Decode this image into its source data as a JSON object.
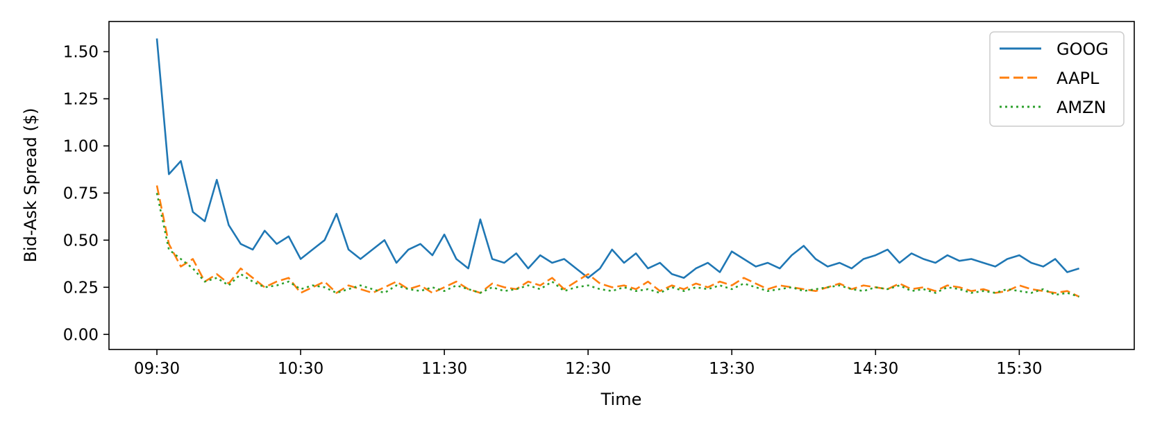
{
  "chart_data": {
    "type": "line",
    "title": "",
    "xlabel": "Time",
    "ylabel": "Bid-Ask Spread ($)",
    "x_range": [
      "09:10",
      "16:18"
    ],
    "ylim": [
      -0.08,
      1.66
    ],
    "x_ticks": [
      "09:30",
      "10:30",
      "11:30",
      "12:30",
      "13:30",
      "14:30",
      "15:30"
    ],
    "y_ticks": [
      "0.00",
      "0.25",
      "0.50",
      "0.75",
      "1.00",
      "1.25",
      "1.50"
    ],
    "legend_position": "top-right",
    "x": [
      "09:30",
      "09:35",
      "09:40",
      "09:45",
      "09:50",
      "09:55",
      "10:00",
      "10:05",
      "10:10",
      "10:15",
      "10:20",
      "10:25",
      "10:30",
      "10:35",
      "10:40",
      "10:45",
      "10:50",
      "10:55",
      "11:00",
      "11:05",
      "11:10",
      "11:15",
      "11:20",
      "11:25",
      "11:30",
      "11:35",
      "11:40",
      "11:45",
      "11:50",
      "11:55",
      "12:00",
      "12:05",
      "12:10",
      "12:15",
      "12:20",
      "12:25",
      "12:30",
      "12:35",
      "12:40",
      "12:45",
      "12:50",
      "12:55",
      "13:00",
      "13:05",
      "13:10",
      "13:15",
      "13:20",
      "13:25",
      "13:30",
      "13:35",
      "13:40",
      "13:45",
      "13:50",
      "13:55",
      "14:00",
      "14:05",
      "14:10",
      "14:15",
      "14:20",
      "14:25",
      "14:30",
      "14:35",
      "14:40",
      "14:45",
      "14:50",
      "14:55",
      "15:00",
      "15:05",
      "15:10",
      "15:15",
      "15:20",
      "15:25",
      "15:30",
      "15:35",
      "15:40",
      "15:45",
      "15:50",
      "15:55"
    ],
    "series": [
      {
        "name": "GOOG",
        "color": "#1f77b4",
        "dash": "solid",
        "values": [
          1.57,
          0.85,
          0.92,
          0.65,
          0.6,
          0.82,
          0.58,
          0.48,
          0.45,
          0.55,
          0.48,
          0.52,
          0.4,
          0.45,
          0.5,
          0.64,
          0.45,
          0.4,
          0.45,
          0.5,
          0.38,
          0.45,
          0.48,
          0.42,
          0.53,
          0.4,
          0.35,
          0.61,
          0.4,
          0.38,
          0.43,
          0.35,
          0.42,
          0.38,
          0.4,
          0.35,
          0.3,
          0.35,
          0.45,
          0.38,
          0.43,
          0.35,
          0.38,
          0.32,
          0.3,
          0.35,
          0.38,
          0.33,
          0.44,
          0.4,
          0.36,
          0.38,
          0.35,
          0.42,
          0.47,
          0.4,
          0.36,
          0.38,
          0.35,
          0.4,
          0.42,
          0.45,
          0.38,
          0.43,
          0.4,
          0.38,
          0.42,
          0.39,
          0.4,
          0.38,
          0.36,
          0.4,
          0.42,
          0.38,
          0.36,
          0.4,
          0.33,
          0.35
        ]
      },
      {
        "name": "AAPL",
        "color": "#ff7f0e",
        "dash": "dashed",
        "values": [
          0.79,
          0.48,
          0.36,
          0.4,
          0.28,
          0.32,
          0.27,
          0.35,
          0.3,
          0.25,
          0.28,
          0.3,
          0.22,
          0.25,
          0.28,
          0.22,
          0.26,
          0.24,
          0.22,
          0.25,
          0.28,
          0.24,
          0.26,
          0.22,
          0.25,
          0.28,
          0.24,
          0.22,
          0.27,
          0.25,
          0.24,
          0.28,
          0.26,
          0.3,
          0.24,
          0.28,
          0.32,
          0.27,
          0.25,
          0.26,
          0.24,
          0.28,
          0.23,
          0.26,
          0.24,
          0.27,
          0.25,
          0.28,
          0.26,
          0.3,
          0.27,
          0.24,
          0.26,
          0.25,
          0.24,
          0.23,
          0.25,
          0.27,
          0.24,
          0.26,
          0.25,
          0.24,
          0.27,
          0.24,
          0.25,
          0.23,
          0.26,
          0.25,
          0.23,
          0.24,
          0.22,
          0.23,
          0.26,
          0.24,
          0.23,
          0.22,
          0.23,
          0.2
        ]
      },
      {
        "name": "AMZN",
        "color": "#2ca02c",
        "dash": "dotted",
        "values": [
          0.75,
          0.45,
          0.4,
          0.35,
          0.28,
          0.3,
          0.26,
          0.32,
          0.28,
          0.25,
          0.26,
          0.28,
          0.24,
          0.26,
          0.25,
          0.22,
          0.24,
          0.26,
          0.24,
          0.22,
          0.26,
          0.24,
          0.23,
          0.25,
          0.23,
          0.26,
          0.24,
          0.22,
          0.25,
          0.23,
          0.24,
          0.26,
          0.24,
          0.28,
          0.23,
          0.25,
          0.26,
          0.24,
          0.23,
          0.25,
          0.23,
          0.24,
          0.22,
          0.25,
          0.23,
          0.25,
          0.24,
          0.26,
          0.24,
          0.27,
          0.25,
          0.23,
          0.24,
          0.25,
          0.23,
          0.24,
          0.25,
          0.26,
          0.24,
          0.23,
          0.25,
          0.24,
          0.26,
          0.23,
          0.24,
          0.22,
          0.25,
          0.24,
          0.22,
          0.23,
          0.22,
          0.24,
          0.23,
          0.22,
          0.24,
          0.21,
          0.22,
          0.2
        ]
      }
    ]
  }
}
